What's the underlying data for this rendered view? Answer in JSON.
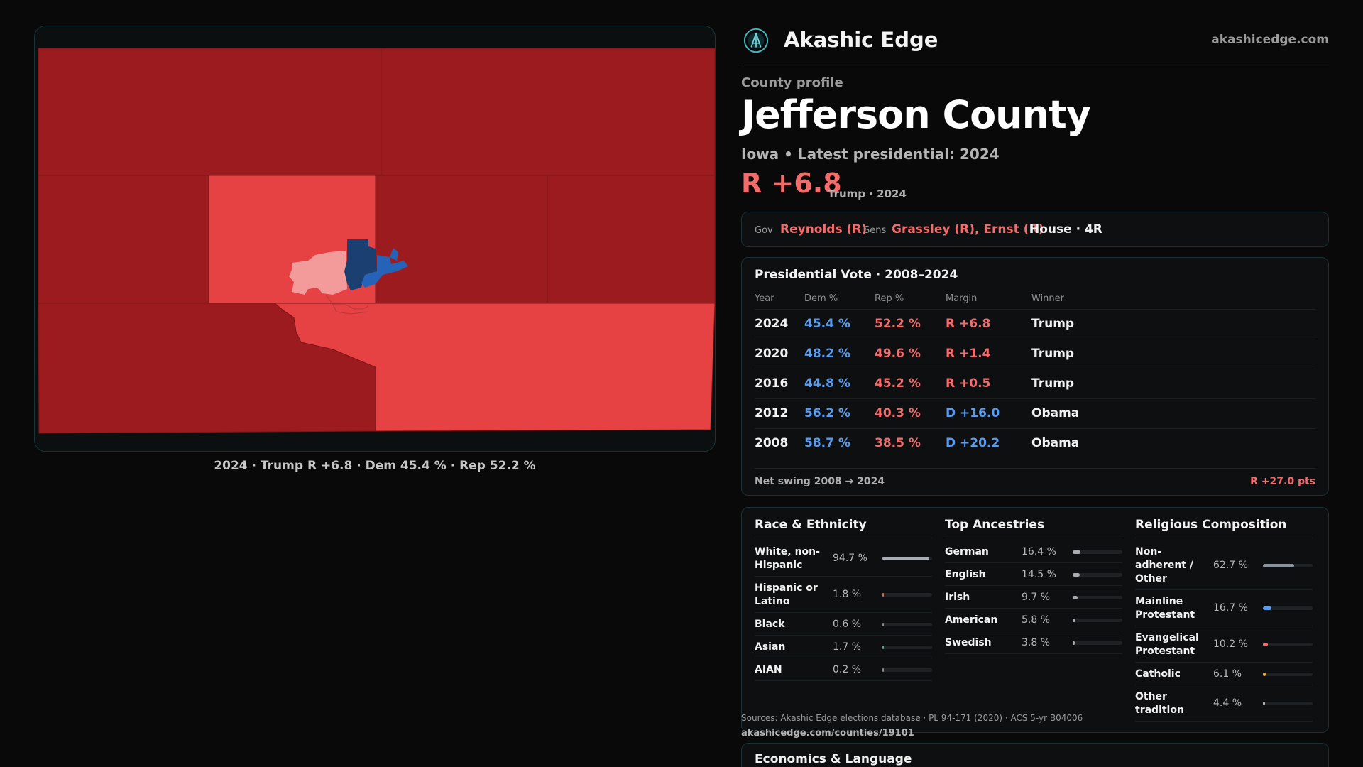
{
  "brand": {
    "name": "Akashic Edge",
    "url": "akashicedge.com"
  },
  "profile": {
    "label": "County profile",
    "county": "Jefferson County",
    "subtitle": "Iowa • Latest presidential: 2024",
    "margin": "R +6.8",
    "margin_sub": "Trump · 2024"
  },
  "officials": {
    "gov_label": "Gov",
    "gov": "Reynolds (R)",
    "sens_label": "Sens",
    "sens": "Grassley (R), Ernst (R)",
    "house": "House · 4R"
  },
  "map": {
    "caption": "2024 · Trump R +6.8 · Dem 45.4 % · Rep 52.2 %",
    "colors": {
      "dark_red": "#9b1b1f",
      "red": "#e64244",
      "light_red": "#f39b9b",
      "blue": "#2563b8",
      "dark_blue": "#1b3f70"
    }
  },
  "presidential": {
    "title": "Presidential Vote · 2008–2024",
    "headers": [
      "Year",
      "Dem %",
      "Rep %",
      "Margin",
      "Winner"
    ],
    "rows": [
      {
        "year": "2024",
        "dem": "45.4 %",
        "rep": "52.2 %",
        "margin": "R +6.8",
        "margin_party": "R",
        "winner": "Trump"
      },
      {
        "year": "2020",
        "dem": "48.2 %",
        "rep": "49.6 %",
        "margin": "R +1.4",
        "margin_party": "R",
        "winner": "Trump"
      },
      {
        "year": "2016",
        "dem": "44.8 %",
        "rep": "45.2 %",
        "margin": "R +0.5",
        "margin_party": "R",
        "winner": "Trump"
      },
      {
        "year": "2012",
        "dem": "56.2 %",
        "rep": "40.3 %",
        "margin": "D +16.0",
        "margin_party": "D",
        "winner": "Obama"
      },
      {
        "year": "2008",
        "dem": "58.7 %",
        "rep": "38.5 %",
        "margin": "D +20.2",
        "margin_party": "D",
        "winner": "Obama"
      }
    ],
    "swing_label": "Net swing 2008 → 2024",
    "swing_value": "R +27.0 pts"
  },
  "race": {
    "title": "Race & Ethnicity",
    "rows": [
      {
        "label": [
          "White, non-",
          "Hispanic"
        ],
        "pct": "94.7 %",
        "value": 94.7,
        "color": "#a9aeb4"
      },
      {
        "label": [
          "Hispanic or",
          "Latino"
        ],
        "pct": "1.8 %",
        "value": 1.8,
        "color": "#e06a4a"
      },
      {
        "label": [
          "Black"
        ],
        "pct": "0.6 %",
        "value": 0.6,
        "color": "#8a8a8a"
      },
      {
        "label": [
          "Asian"
        ],
        "pct": "1.7 %",
        "value": 1.7,
        "color": "#4caf8a"
      },
      {
        "label": [
          "AIAN"
        ],
        "pct": "0.2 %",
        "value": 0.2,
        "color": "#8a8a8a"
      }
    ]
  },
  "ancestry": {
    "title": "Top Ancestries",
    "rows": [
      {
        "label": [
          "German"
        ],
        "pct": "16.4 %",
        "value": 16.4,
        "color": "#a9aeb4"
      },
      {
        "label": [
          "English"
        ],
        "pct": "14.5 %",
        "value": 14.5,
        "color": "#a9aeb4"
      },
      {
        "label": [
          "Irish"
        ],
        "pct": "9.7 %",
        "value": 9.7,
        "color": "#a9aeb4"
      },
      {
        "label": [
          "American"
        ],
        "pct": "5.8 %",
        "value": 5.8,
        "color": "#a9aeb4"
      },
      {
        "label": [
          "Swedish"
        ],
        "pct": "3.8 %",
        "value": 3.8,
        "color": "#a9aeb4"
      }
    ]
  },
  "religion": {
    "title": "Religious Composition",
    "rows": [
      {
        "label": [
          "Non-",
          "adherent /",
          "Other"
        ],
        "pct": "62.7 %",
        "value": 62.7,
        "color": "#8d939b"
      },
      {
        "label": [
          "Mainline",
          "Protestant"
        ],
        "pct": "16.7 %",
        "value": 16.7,
        "color": "#5a9cf0"
      },
      {
        "label": [
          "Evangelical",
          "Protestant"
        ],
        "pct": "10.2 %",
        "value": 10.2,
        "color": "#f36b6b"
      },
      {
        "label": [
          "Catholic"
        ],
        "pct": "6.1 %",
        "value": 6.1,
        "color": "#e0a93a"
      },
      {
        "label": [
          "Other",
          "tradition"
        ],
        "pct": "4.4 %",
        "value": 4.4,
        "color": "#a9aeb4"
      }
    ]
  },
  "sources": {
    "text": "Sources: Akashic Edge elections database · PL 94-171 (2020) · ACS 5-yr B04006",
    "url": "akashicedge.com/counties/19101"
  },
  "economics": {
    "title": "Economics & Language"
  }
}
